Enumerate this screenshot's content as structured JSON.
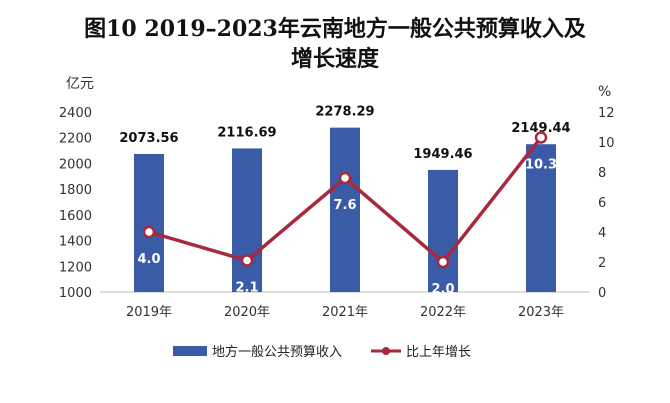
{
  "chart_data": {
    "type": "bar+line",
    "title_line1": "图10  2019–2023年云南地方一般公共预算收入及",
    "title_line2": "增长速度",
    "y_left_unit": "亿元",
    "y_right_unit": "%",
    "y_left_ticks": [
      "2400",
      "2200",
      "2000",
      "1800",
      "1600",
      "1400",
      "1200",
      "1000"
    ],
    "y_right_ticks": [
      "12",
      "10",
      "8",
      "6",
      "4",
      "2",
      "0"
    ],
    "ylim_left": [
      1000,
      2400
    ],
    "ylim_right": [
      0,
      12
    ],
    "categories": [
      "2019年",
      "2020年",
      "2021年",
      "2022年",
      "2023年"
    ],
    "series": [
      {
        "name": "地方一般公共预算收入",
        "kind": "bar",
        "axis": "left",
        "color": "#3a5ba6",
        "values": [
          2073.56,
          2116.69,
          2278.29,
          1949.46,
          2149.44
        ],
        "labels": [
          "2073.56",
          "2116.69",
          "2278.29",
          "1949.46",
          "2149.44"
        ]
      },
      {
        "name": "比上年增长",
        "kind": "line",
        "axis": "right",
        "color": "#a8283d",
        "values": [
          4.0,
          2.1,
          7.6,
          2.0,
          10.3
        ],
        "labels": [
          "4.0",
          "2.1",
          "7.6",
          "2.0",
          "10.3"
        ]
      }
    ],
    "legend_position": "bottom"
  }
}
